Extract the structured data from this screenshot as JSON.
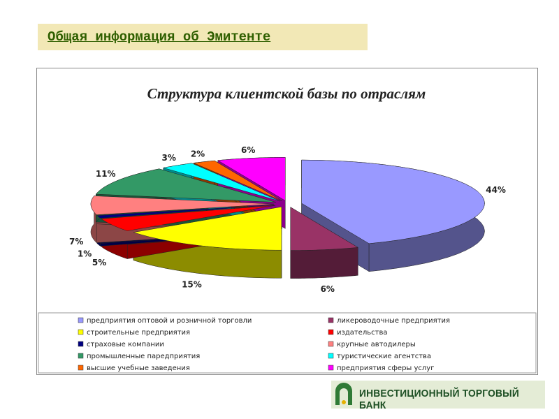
{
  "header": {
    "title": "Общая информация об Эмитенте"
  },
  "chart_data": {
    "type": "pie",
    "title": "Структура клиентской базы по отраслям",
    "categories": [
      "предприятия оптовой и розничной торговли",
      "ликероводочные предприятия",
      "строительные предприятия",
      "издательства",
      "страховые компании",
      "крупные автодилеры",
      "промышленные паредприятия",
      "туристические агентства",
      "высшие учебные заведения",
      "предприятия сферы услуг"
    ],
    "values": [
      44,
      6,
      15,
      5,
      1,
      7,
      11,
      3,
      2,
      6
    ],
    "value_labels": [
      "44%",
      "6%",
      "15%",
      "5%",
      "1%",
      "7%",
      "11%",
      "3%",
      "2%",
      "6%"
    ],
    "colors": [
      "#9999ff",
      "#993366",
      "#ffff00",
      "#ff0000",
      "#000080",
      "#ff8080",
      "#339966",
      "#00ffff",
      "#ff6600",
      "#ff00ff"
    ]
  },
  "footer": {
    "bank": "ИНВЕСТИЦИОННЫЙ ТОРГОВЫЙ БАНК"
  }
}
